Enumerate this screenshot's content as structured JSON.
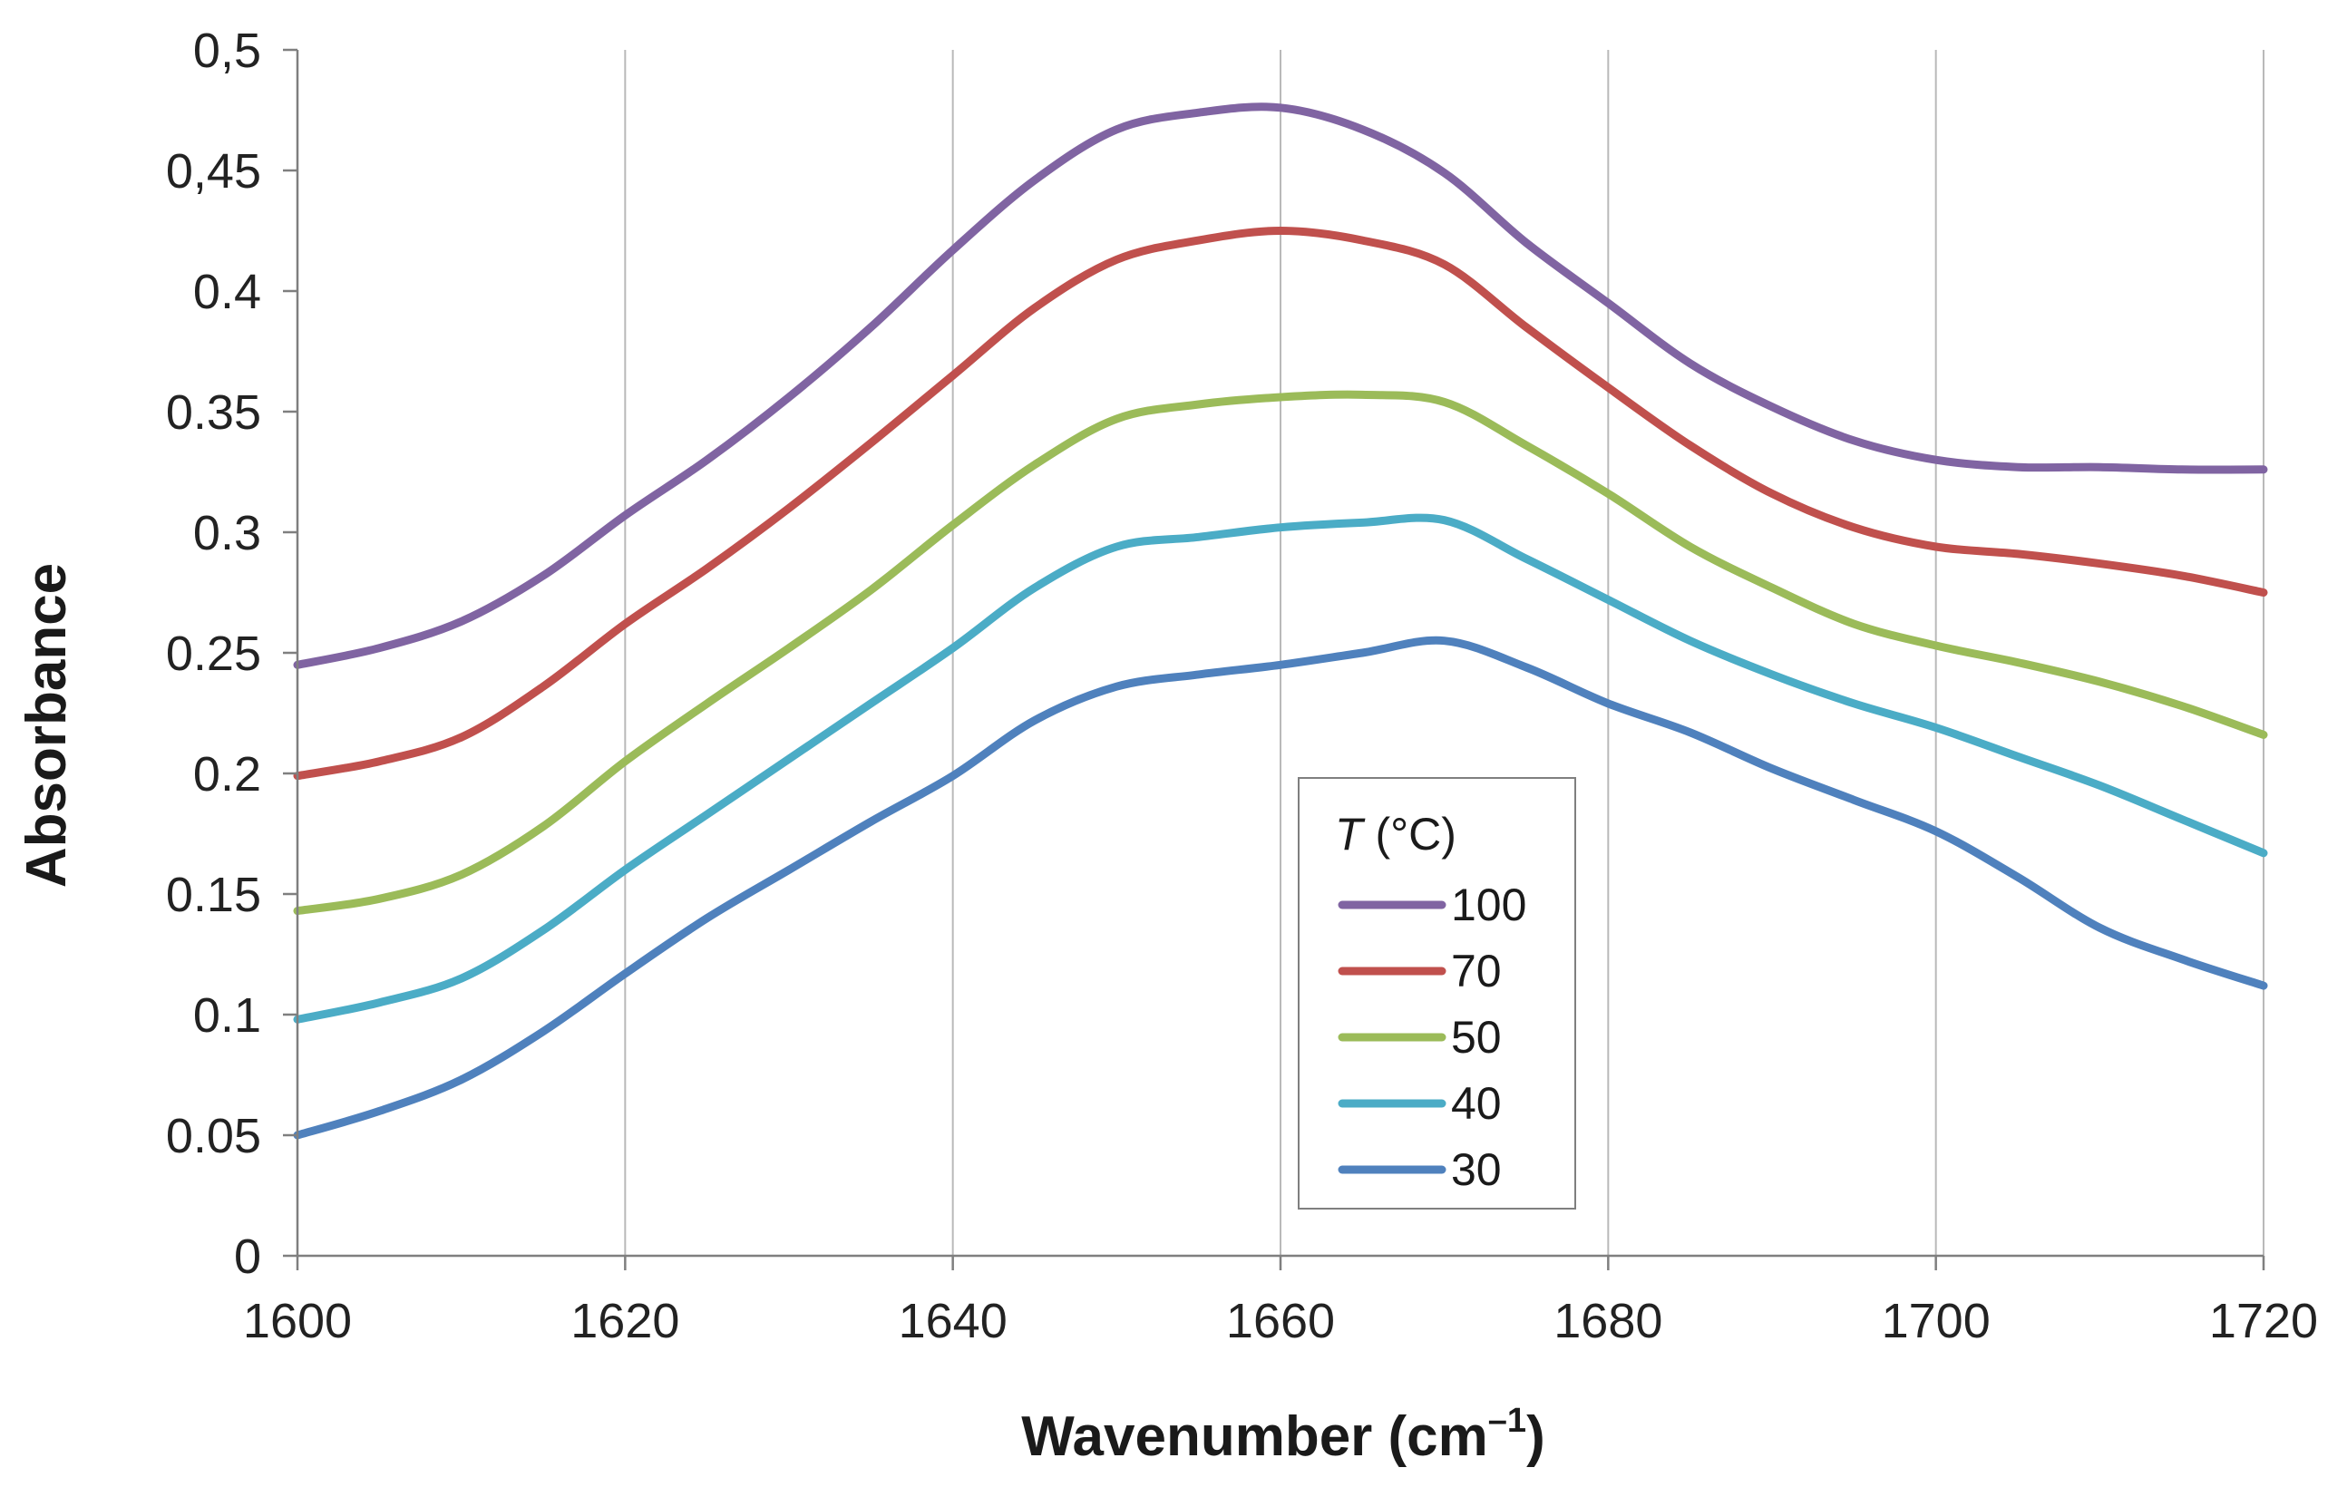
{
  "chart_data": {
    "type": "line",
    "title": "",
    "xlabel": "Wavenumber (cm",
    "xlabel_sup": "–1",
    "xlabel_close": ")",
    "ylabel": "Absorbance",
    "xlim": [
      1600,
      1720
    ],
    "ylim": [
      0,
      0.5
    ],
    "x_ticks": [
      1600,
      1620,
      1640,
      1660,
      1680,
      1700,
      1720
    ],
    "x_tick_labels": [
      "1600",
      "1620",
      "1640",
      "1660",
      "1680",
      "1700",
      "1720"
    ],
    "y_ticks": [
      0,
      0.05,
      0.1,
      0.15,
      0.2,
      0.25,
      0.3,
      0.35,
      0.4,
      0.45,
      0.5
    ],
    "y_tick_labels": [
      "0",
      "0.05",
      "0.1",
      "0.15",
      "0.2",
      "0.25",
      "0.3",
      "0.35",
      "0.4",
      "0,45",
      "0,5"
    ],
    "grid": "vertical",
    "legend": {
      "title_var": "T",
      "title_unit": " (°C)",
      "placement": "center-bottom"
    },
    "series": [
      {
        "name": "100",
        "color": "#8064a2",
        "x": [
          1600,
          1605,
          1610,
          1615,
          1620,
          1625,
          1630,
          1635,
          1640,
          1645,
          1650,
          1655,
          1660,
          1665,
          1670,
          1675,
          1680,
          1685,
          1690,
          1695,
          1700,
          1705,
          1710,
          1715,
          1720
        ],
        "y": [
          0.245,
          0.252,
          0.263,
          0.282,
          0.307,
          0.33,
          0.356,
          0.385,
          0.417,
          0.446,
          0.467,
          0.474,
          0.476,
          0.467,
          0.449,
          0.42,
          0.395,
          0.37,
          0.352,
          0.338,
          0.33,
          0.327,
          0.327,
          0.326,
          0.326
        ]
      },
      {
        "name": "70",
        "color": "#c0504d",
        "x": [
          1600,
          1605,
          1610,
          1615,
          1620,
          1625,
          1630,
          1635,
          1640,
          1645,
          1650,
          1655,
          1660,
          1665,
          1670,
          1675,
          1680,
          1685,
          1690,
          1695,
          1700,
          1705,
          1710,
          1715,
          1720
        ],
        "y": [
          0.199,
          0.205,
          0.215,
          0.236,
          0.262,
          0.285,
          0.31,
          0.337,
          0.365,
          0.393,
          0.413,
          0.421,
          0.425,
          0.421,
          0.411,
          0.385,
          0.36,
          0.336,
          0.316,
          0.302,
          0.294,
          0.291,
          0.287,
          0.282,
          0.275
        ]
      },
      {
        "name": "50",
        "color": "#9bbb59",
        "x": [
          1600,
          1605,
          1610,
          1615,
          1620,
          1625,
          1630,
          1635,
          1640,
          1645,
          1650,
          1655,
          1660,
          1665,
          1670,
          1675,
          1680,
          1685,
          1690,
          1695,
          1700,
          1705,
          1710,
          1715,
          1720
        ],
        "y": [
          0.143,
          0.148,
          0.158,
          0.178,
          0.205,
          0.229,
          0.252,
          0.276,
          0.303,
          0.328,
          0.347,
          0.353,
          0.356,
          0.357,
          0.354,
          0.336,
          0.316,
          0.294,
          0.277,
          0.262,
          0.253,
          0.246,
          0.238,
          0.228,
          0.216
        ]
      },
      {
        "name": "40",
        "color": "#4bacc6",
        "x": [
          1600,
          1605,
          1610,
          1615,
          1620,
          1625,
          1630,
          1635,
          1640,
          1645,
          1650,
          1655,
          1660,
          1665,
          1670,
          1675,
          1680,
          1685,
          1690,
          1695,
          1700,
          1705,
          1710,
          1715,
          1720
        ],
        "y": [
          0.098,
          0.105,
          0.115,
          0.135,
          0.16,
          0.183,
          0.206,
          0.229,
          0.252,
          0.277,
          0.294,
          0.298,
          0.302,
          0.304,
          0.305,
          0.289,
          0.272,
          0.255,
          0.241,
          0.229,
          0.219,
          0.207,
          0.195,
          0.181,
          0.167
        ]
      },
      {
        "name": "30",
        "color": "#4f81bd",
        "x": [
          1600,
          1605,
          1610,
          1615,
          1620,
          1625,
          1630,
          1635,
          1640,
          1645,
          1650,
          1655,
          1660,
          1665,
          1670,
          1675,
          1680,
          1685,
          1690,
          1695,
          1700,
          1705,
          1710,
          1715,
          1720
        ],
        "y": [
          0.05,
          0.06,
          0.073,
          0.093,
          0.117,
          0.14,
          0.16,
          0.18,
          0.199,
          0.222,
          0.236,
          0.241,
          0.245,
          0.25,
          0.255,
          0.244,
          0.229,
          0.217,
          0.202,
          0.189,
          0.176,
          0.157,
          0.136,
          0.123,
          0.112
        ]
      }
    ]
  }
}
